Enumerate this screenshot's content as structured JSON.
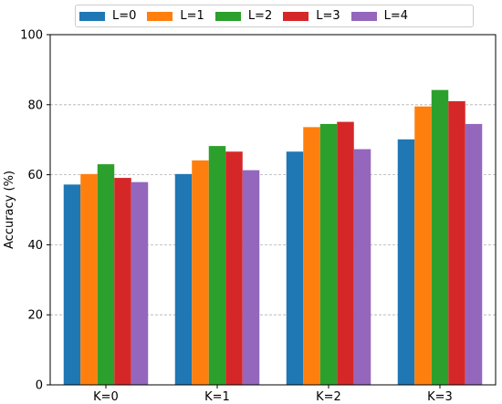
{
  "chart_data": {
    "type": "bar",
    "categories": [
      "K=0",
      "K=1",
      "K=2",
      "K=3"
    ],
    "series": [
      {
        "name": "L=0",
        "color": "#1f77b4",
        "values": [
          57.2,
          60.2,
          66.6,
          70.1
        ]
      },
      {
        "name": "L=1",
        "color": "#ff7f0e",
        "values": [
          60.2,
          64.1,
          73.6,
          79.5
        ]
      },
      {
        "name": "L=2",
        "color": "#2ca02c",
        "values": [
          63.0,
          68.2,
          74.5,
          84.2
        ]
      },
      {
        "name": "L=3",
        "color": "#d62728",
        "values": [
          59.1,
          66.6,
          75.1,
          81.0
        ]
      },
      {
        "name": "L=4",
        "color": "#9467bd",
        "values": [
          57.9,
          61.3,
          67.3,
          74.5
        ]
      }
    ],
    "ylabel": "Accuracy (%)",
    "xlabel": "",
    "ylim": [
      0,
      100
    ],
    "yticks": [
      0,
      20,
      40,
      60,
      80,
      100
    ],
    "grid": "y-dashed",
    "legend": "top"
  }
}
